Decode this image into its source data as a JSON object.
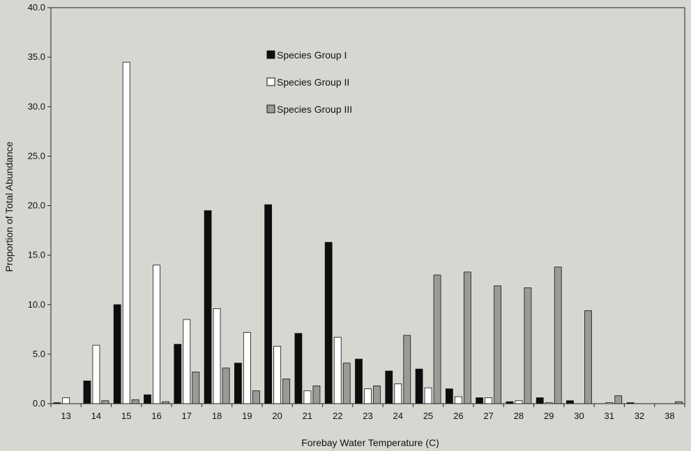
{
  "chart_data": {
    "type": "bar",
    "title": "",
    "xlabel": "Forebay Water Temperature (C)",
    "ylabel": "Proportion of Total Abundance",
    "ylim": [
      0,
      40
    ],
    "y_ticks": [
      "0.0",
      "5.0",
      "10.0",
      "15.0",
      "20.0",
      "25.0",
      "30.0",
      "35.0",
      "40.0"
    ],
    "categories": [
      "13",
      "14",
      "15",
      "16",
      "17",
      "18",
      "19",
      "20",
      "21",
      "22",
      "23",
      "24",
      "25",
      "26",
      "27",
      "28",
      "29",
      "30",
      "31",
      "32",
      "38"
    ],
    "grid": false,
    "legend_position": "top-center",
    "series": [
      {
        "name": "Species Group I",
        "color": "#0d0d0d",
        "values": [
          0.1,
          2.3,
          10.0,
          0.9,
          6.0,
          19.5,
          4.1,
          20.1,
          7.1,
          16.3,
          4.5,
          3.3,
          3.5,
          1.5,
          0.6,
          0.2,
          0.6,
          0.3,
          0.0,
          0.1,
          0.0
        ]
      },
      {
        "name": "Species Group II",
        "color": "#ffffff",
        "values": [
          0.6,
          5.9,
          34.5,
          14.0,
          8.5,
          9.6,
          7.2,
          5.8,
          1.3,
          6.7,
          1.5,
          2.0,
          1.6,
          0.7,
          0.6,
          0.3,
          0.1,
          0.0,
          0.1,
          0.0,
          0.0
        ]
      },
      {
        "name": "Species Group III",
        "color": "#9a9a97",
        "values": [
          0.0,
          0.3,
          0.4,
          0.2,
          3.2,
          3.6,
          1.3,
          2.5,
          1.8,
          4.1,
          1.8,
          6.9,
          13.0,
          13.3,
          11.9,
          11.7,
          13.8,
          9.4,
          0.8,
          0.0,
          0.2
        ]
      }
    ]
  }
}
